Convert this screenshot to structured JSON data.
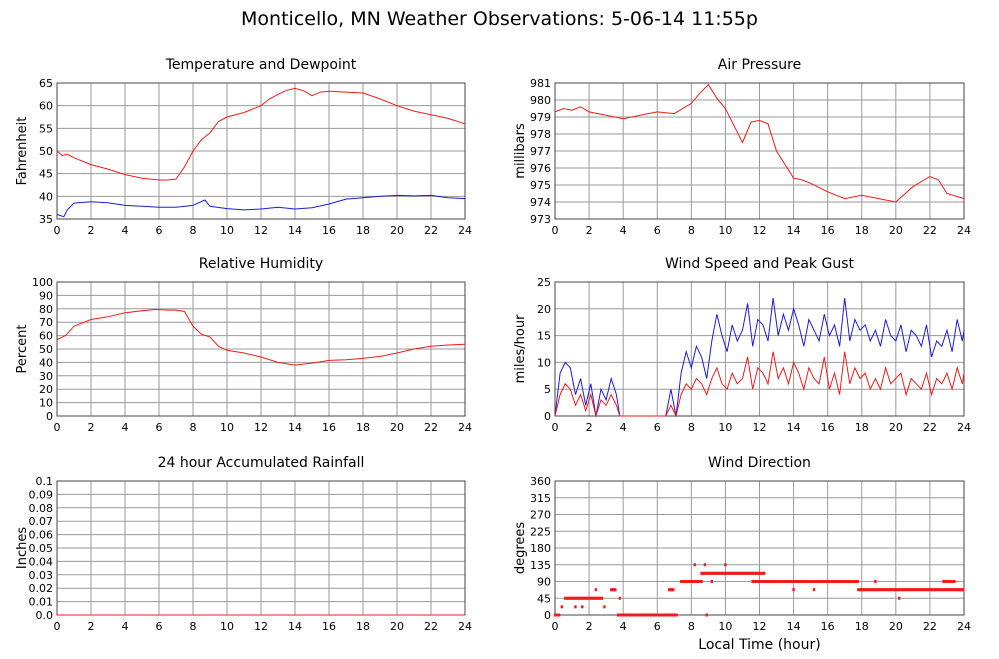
{
  "page": {
    "title": "Monticello, MN Weather Observations: 5-06-14 11:55p"
  },
  "colors": {
    "red": "#ee1c1c",
    "blue": "#1c1cdd",
    "grid": "#9a9a9a"
  },
  "chart_data": [
    {
      "type": "line",
      "title": "Temperature and Dewpoint",
      "ylabel": "Fahrenheit",
      "xlabel": "",
      "xlim": [
        0,
        24
      ],
      "ylim": [
        35,
        65
      ],
      "xticks": [
        "0",
        "2",
        "4",
        "6",
        "8",
        "10",
        "12",
        "14",
        "16",
        "18",
        "20",
        "22",
        "24"
      ],
      "yticks": [
        "35",
        "40",
        "45",
        "50",
        "55",
        "60",
        "65"
      ],
      "series": [
        {
          "color": "#ee1c1c",
          "x": [
            0,
            0.3,
            0.6,
            1,
            2,
            3,
            4,
            5,
            6,
            6.5,
            7,
            7.5,
            8,
            8.5,
            9,
            9.5,
            10,
            11,
            12,
            12.5,
            13,
            13.5,
            14,
            14.5,
            15,
            15.5,
            16,
            17,
            18,
            19,
            20,
            21,
            22,
            23,
            24
          ],
          "y": [
            50,
            49,
            49.3,
            48.5,
            47,
            46,
            44.8,
            44,
            43.6,
            43.6,
            43.8,
            46.5,
            50,
            52.5,
            54,
            56.5,
            57.5,
            58.5,
            60,
            61.5,
            62.5,
            63.4,
            63.8,
            63.3,
            62.2,
            63,
            63.2,
            63,
            62.8,
            61.5,
            60,
            58.8,
            58,
            57.2,
            56
          ]
        },
        {
          "color": "#1c1cdd",
          "x": [
            0,
            0.4,
            0.6,
            1,
            2,
            3,
            4,
            5,
            6,
            7,
            8,
            8.7,
            9,
            10,
            11,
            12,
            13,
            14,
            15,
            16,
            17,
            18,
            19,
            20,
            21,
            22,
            23,
            24
          ],
          "y": [
            36,
            35.5,
            37,
            38.5,
            38.8,
            38.6,
            38,
            37.8,
            37.6,
            37.6,
            38,
            39.2,
            37.8,
            37.3,
            37,
            37.2,
            37.6,
            37.2,
            37.5,
            38.3,
            39.4,
            39.7,
            40,
            40.2,
            40.1,
            40.2,
            39.7,
            39.5
          ]
        }
      ]
    },
    {
      "type": "line",
      "title": "Air Pressure",
      "ylabel": "millibars",
      "xlabel": "",
      "xlim": [
        0,
        24
      ],
      "ylim": [
        973,
        981
      ],
      "xticks": [
        "0",
        "2",
        "4",
        "6",
        "8",
        "10",
        "12",
        "14",
        "16",
        "18",
        "20",
        "22",
        "24"
      ],
      "yticks": [
        "973",
        "974",
        "975",
        "976",
        "977",
        "978",
        "979",
        "980",
        "981"
      ],
      "series": [
        {
          "color": "#ee1c1c",
          "x": [
            0,
            0.5,
            1,
            1.5,
            2,
            3,
            4,
            5,
            6,
            7,
            8,
            8.5,
            9,
            9.5,
            10,
            10.5,
            11,
            11.5,
            12,
            12.5,
            13,
            13.5,
            14,
            14.5,
            15,
            16,
            17,
            18,
            19,
            20,
            21,
            22,
            22.5,
            23,
            24
          ],
          "y": [
            979.3,
            979.5,
            979.4,
            979.6,
            979.3,
            979.1,
            978.9,
            979.1,
            979.3,
            979.2,
            979.8,
            980.4,
            980.9,
            980.1,
            979.5,
            978.5,
            977.5,
            978.7,
            978.8,
            978.6,
            977.0,
            976.2,
            975.4,
            975.3,
            975.1,
            974.6,
            974.2,
            974.4,
            974.2,
            974.0,
            974.9,
            975.5,
            975.3,
            974.5,
            974.2
          ]
        }
      ]
    },
    {
      "type": "line",
      "title": "Relative Humidity",
      "ylabel": "Percent",
      "xlabel": "",
      "xlim": [
        0,
        24
      ],
      "ylim": [
        0,
        100
      ],
      "xticks": [
        "0",
        "2",
        "4",
        "6",
        "8",
        "10",
        "12",
        "14",
        "16",
        "18",
        "20",
        "22",
        "24"
      ],
      "yticks": [
        "0",
        "10",
        "20",
        "30",
        "40",
        "50",
        "60",
        "70",
        "80",
        "90",
        "100"
      ],
      "series": [
        {
          "color": "#ee1c1c",
          "x": [
            0,
            0.5,
            1,
            2,
            3,
            4,
            5,
            5.8,
            6.5,
            7,
            7.5,
            8,
            8.5,
            9,
            9.5,
            10,
            11,
            12,
            13,
            14,
            15,
            16,
            17,
            18,
            19,
            20,
            21,
            22,
            23,
            24
          ],
          "y": [
            57,
            60,
            67,
            72,
            74,
            77,
            78.5,
            79.5,
            79,
            79,
            78,
            67,
            61,
            59,
            52,
            49,
            47,
            44,
            40,
            38,
            39.5,
            41.5,
            42,
            43,
            44.5,
            47,
            50,
            52,
            53,
            53.5
          ]
        }
      ]
    },
    {
      "type": "line",
      "title": "Wind Speed and Peak Gust",
      "ylabel": "miles/hour",
      "xlabel": "",
      "xlim": [
        0,
        24
      ],
      "ylim": [
        0,
        25
      ],
      "xticks": [
        "0",
        "2",
        "4",
        "6",
        "8",
        "10",
        "12",
        "14",
        "16",
        "18",
        "20",
        "22",
        "24"
      ],
      "yticks": [
        "0",
        "5",
        "10",
        "15",
        "20",
        "25"
      ],
      "series": [
        {
          "color": "#1c1cdd",
          "x": [
            0,
            0.3,
            0.6,
            0.9,
            1.2,
            1.5,
            1.8,
            2.1,
            2.4,
            2.7,
            3.0,
            3.3,
            3.6,
            3.8,
            4,
            5,
            6,
            6.5,
            6.8,
            7.1,
            7.4,
            7.7,
            8.0,
            8.3,
            8.6,
            8.9,
            9.2,
            9.5,
            9.8,
            10.1,
            10.4,
            10.7,
            11.0,
            11.3,
            11.6,
            11.9,
            12.2,
            12.5,
            12.8,
            13.1,
            13.4,
            13.7,
            14.0,
            14.3,
            14.6,
            14.9,
            15.2,
            15.5,
            15.8,
            16.1,
            16.4,
            16.7,
            17.0,
            17.3,
            17.6,
            17.9,
            18.2,
            18.5,
            18.8,
            19.1,
            19.4,
            19.7,
            20.0,
            20.3,
            20.6,
            20.9,
            21.2,
            21.5,
            21.8,
            22.1,
            22.4,
            22.7,
            23.0,
            23.3,
            23.6,
            23.9,
            24
          ],
          "y": [
            0,
            8,
            10,
            9,
            4,
            7,
            2,
            6,
            0,
            5,
            3,
            7,
            4,
            0,
            0,
            0,
            0,
            0,
            5,
            0,
            8,
            12,
            9,
            13,
            11,
            7,
            14,
            19,
            15,
            12,
            17,
            14,
            16,
            21,
            13,
            18,
            17,
            14,
            22,
            15,
            19,
            16,
            20,
            17,
            13,
            18,
            16,
            14,
            19,
            15,
            17,
            13,
            22,
            14,
            18,
            16,
            17,
            14,
            16,
            13,
            18,
            15,
            14,
            17,
            12,
            16,
            15,
            13,
            17,
            11,
            14,
            13,
            16,
            12,
            18,
            14,
            16
          ]
        },
        {
          "color": "#ee1c1c",
          "x": [
            0,
            0.3,
            0.6,
            0.9,
            1.2,
            1.5,
            1.8,
            2.1,
            2.4,
            2.7,
            3.0,
            3.3,
            3.6,
            3.8,
            4,
            5,
            6,
            6.5,
            6.8,
            7.1,
            7.4,
            7.7,
            8.0,
            8.3,
            8.6,
            8.9,
            9.2,
            9.5,
            9.8,
            10.1,
            10.4,
            10.7,
            11.0,
            11.3,
            11.6,
            11.9,
            12.2,
            12.5,
            12.8,
            13.1,
            13.4,
            13.7,
            14.0,
            14.3,
            14.6,
            14.9,
            15.2,
            15.5,
            15.8,
            16.1,
            16.4,
            16.7,
            17.0,
            17.3,
            17.6,
            17.9,
            18.2,
            18.5,
            18.8,
            19.1,
            19.4,
            19.7,
            20.0,
            20.3,
            20.6,
            20.9,
            21.2,
            21.5,
            21.8,
            22.1,
            22.4,
            22.7,
            23.0,
            23.3,
            23.6,
            23.9,
            24
          ],
          "y": [
            0,
            4,
            6,
            5,
            2,
            4,
            1,
            4,
            0,
            3,
            2,
            4,
            2,
            0,
            0,
            0,
            0,
            0,
            2,
            0,
            4,
            6,
            5,
            7,
            6,
            4,
            7,
            9,
            6,
            5,
            8,
            6,
            7,
            11,
            5,
            9,
            8,
            6,
            12,
            7,
            9,
            6,
            10,
            8,
            5,
            9,
            7,
            6,
            11,
            5,
            8,
            4,
            12,
            6,
            9,
            7,
            8,
            5,
            7,
            5,
            9,
            6,
            7,
            8,
            4,
            7,
            6,
            5,
            8,
            4,
            7,
            6,
            8,
            5,
            9,
            6,
            8
          ]
        }
      ]
    },
    {
      "type": "line",
      "title": "24 hour Accumulated Rainfall",
      "ylabel": "Inches",
      "xlabel": "",
      "xlim": [
        0,
        24
      ],
      "ylim": [
        0,
        0.1
      ],
      "xticks": [
        "0",
        "2",
        "4",
        "6",
        "8",
        "10",
        "12",
        "14",
        "16",
        "18",
        "20",
        "22",
        "24"
      ],
      "yticks": [
        "0.0",
        "0.01",
        "0.02",
        "0.03",
        "0.04",
        "0.05",
        "0.06",
        "0.07",
        "0.08",
        "0.09",
        "0.1"
      ],
      "series": [
        {
          "color": "#ee1c1c",
          "x": [
            0,
            24
          ],
          "y": [
            0,
            0
          ]
        }
      ]
    },
    {
      "type": "scatter",
      "title": "Wind Direction",
      "ylabel": "degrees",
      "xlabel": "Local Time (hour)",
      "xlim": [
        0,
        24
      ],
      "ylim": [
        0,
        360
      ],
      "xticks": [
        "0",
        "2",
        "4",
        "6",
        "8",
        "10",
        "12",
        "14",
        "16",
        "18",
        "20",
        "22",
        "24"
      ],
      "yticks": [
        "0",
        "45",
        "90",
        "135",
        "180",
        "225",
        "270",
        "315",
        "360"
      ],
      "series": [
        {
          "color": "#ee1c1c",
          "segments": [
            {
              "x0": 0.0,
              "x1": 0.3,
              "y": 0
            },
            {
              "x0": 0.6,
              "x1": 2.8,
              "y": 45
            },
            {
              "x0": 3.3,
              "x1": 3.6,
              "y": 68
            },
            {
              "x0": 3.7,
              "x1": 7.2,
              "y": 0
            },
            {
              "x0": 6.7,
              "x1": 7.0,
              "y": 68
            },
            {
              "x0": 7.4,
              "x1": 8.6,
              "y": 90
            },
            {
              "x0": 8.6,
              "x1": 12.3,
              "y": 112
            },
            {
              "x0": 11.6,
              "x1": 17.8,
              "y": 90
            },
            {
              "x0": 17.8,
              "x1": 24.0,
              "y": 68
            },
            {
              "x0": 22.8,
              "x1": 23.5,
              "y": 90
            }
          ],
          "points": [
            {
              "x": 0.4,
              "y": 22
            },
            {
              "x": 1.2,
              "y": 22
            },
            {
              "x": 1.6,
              "y": 22
            },
            {
              "x": 2.4,
              "y": 68
            },
            {
              "x": 2.9,
              "y": 22
            },
            {
              "x": 3.8,
              "y": 45
            },
            {
              "x": 8.2,
              "y": 135
            },
            {
              "x": 8.8,
              "y": 135
            },
            {
              "x": 9.2,
              "y": 90
            },
            {
              "x": 8.9,
              "y": 0
            },
            {
              "x": 10.0,
              "y": 135
            },
            {
              "x": 14.0,
              "y": 68
            },
            {
              "x": 15.2,
              "y": 68
            },
            {
              "x": 20.2,
              "y": 45
            },
            {
              "x": 18.8,
              "y": 90
            }
          ]
        }
      ]
    }
  ]
}
